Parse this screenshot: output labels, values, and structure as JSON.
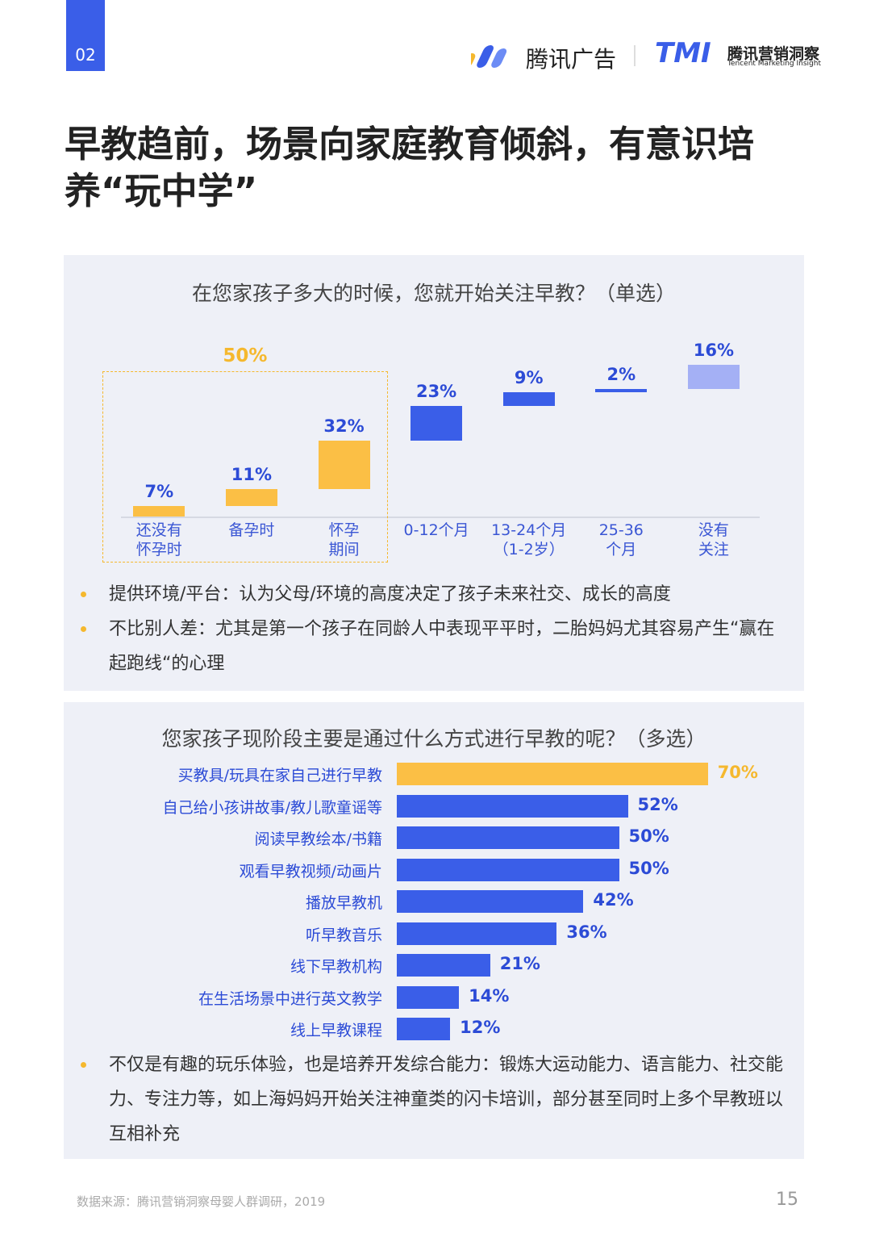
{
  "header": {
    "page_tag": "02",
    "brand1": "腾讯广告",
    "brand2_mark": "TMI",
    "brand2": "腾讯营销洞察",
    "brand2_sub": "Tencent Marketing Insight"
  },
  "title_lines": [
    "早教趋前，场景向家庭教育倾斜，有意识培",
    "养“玩中学”"
  ],
  "chart_data": [
    {
      "type": "waterfall",
      "title": "在您家孩子多大的时候，您就开始关注早教？（单选）",
      "categories": [
        "还没有\n怀孕时",
        "备孕时",
        "怀孕\n期间",
        "0-12个月",
        "13-24个月\n（1-2岁）",
        "25-36\n个月",
        "没有\n关注"
      ],
      "values": [
        7,
        11,
        32,
        23,
        9,
        2,
        16
      ],
      "value_labels": [
        "7%",
        "11%",
        "32%",
        "23%",
        "9%",
        "2%",
        "16%"
      ],
      "colors": [
        "#fbbf45",
        "#fbbf45",
        "#fbbf45",
        "#3a5ee8",
        "#3a5ee8",
        "#3a5ee8",
        "#a4b0f5"
      ],
      "group_value": 50,
      "group_label": "50%",
      "group_color": "#f5b82e"
    },
    {
      "type": "hbar",
      "title": "您家孩子现阶段主要是通过什么方式进行早教的呢？（多选）",
      "categories": [
        "买教具/玩具在家自己进行早教",
        "自己给小孩讲故事/教儿歌童谣等",
        "阅读早教绘本/书籍",
        "观看早教视频/动画片",
        "播放早教机",
        "听早教音乐",
        "线下早教机构",
        "在生活场景中进行英文教学",
        "线上早教课程"
      ],
      "values": [
        70,
        52,
        50,
        50,
        42,
        36,
        21,
        14,
        12
      ],
      "value_labels": [
        "70%",
        "52%",
        "50%",
        "50%",
        "42%",
        "36%",
        "21%",
        "14%",
        "12%"
      ],
      "colors": [
        "#fbbf45",
        "#3a5ee8",
        "#3a5ee8",
        "#3a5ee8",
        "#3a5ee8",
        "#3a5ee8",
        "#3a5ee8",
        "#3a5ee8",
        "#3a5ee8"
      ],
      "label_colors": [
        "#f5b82e",
        "#2c4bd6",
        "#2c4bd6",
        "#2c4bd6",
        "#2c4bd6",
        "#2c4bd6",
        "#2c4bd6",
        "#2c4bd6",
        "#2c4bd6"
      ]
    }
  ],
  "panel1_bullets": [
    "提供环境/平台：认为父母/环境的高度决定了孩子未来社交、成长的高度",
    "不比别人差：尤其是第一个孩子在同龄人中表现平平时，二胎妈妈尤其容易产生“赢在起跑线“的心理"
  ],
  "panel2_bullets": [
    "不仅是有趣的玩乐体验，也是培养开发综合能力：锻炼大运动能力、语言能力、社交能力、专注力等，如上海妈妈开始关注神童类的闪卡培训，部分甚至同时上多个早教班以互相补充"
  ],
  "footer": {
    "source": "数据来源：腾讯营销洞察母婴人群调研，2019",
    "page": "15"
  }
}
